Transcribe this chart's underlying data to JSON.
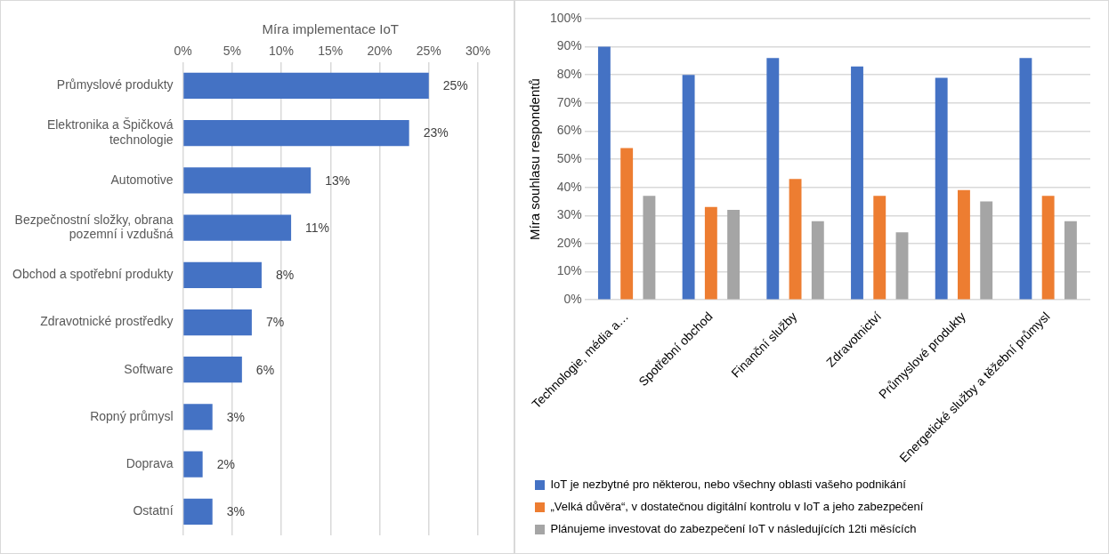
{
  "chart_data": [
    {
      "type": "bar",
      "orientation": "horizontal",
      "xlabel": "Míra implementace IoT",
      "categories": [
        "Průmyslové produkty",
        "Elektronika a Špičková technologie",
        "Automotive",
        "Bezpečnostní složky, obrana pozemní i vzdušná",
        "Obchod a spotřební produkty",
        "Zdravotnické prostředky",
        "Software",
        "Ropný průmysl",
        "Doprava",
        "Ostatní"
      ],
      "series": [
        {
          "color": "#4472c4",
          "values": [
            25,
            23,
            13,
            11,
            8,
            7,
            6,
            3,
            2,
            3
          ],
          "value_labels": [
            "25%",
            "23%",
            "13%",
            "11%",
            "8%",
            "7%",
            "6%",
            "3%",
            "2%",
            "3%"
          ]
        }
      ],
      "xlim": [
        0,
        30
      ],
      "xticks": [
        {
          "value": 0,
          "label": "0%"
        },
        {
          "value": 5,
          "label": "5%"
        },
        {
          "value": 10,
          "label": "10%"
        },
        {
          "value": 15,
          "label": "15%"
        },
        {
          "value": 20,
          "label": "20%"
        },
        {
          "value": 25,
          "label": "25%"
        },
        {
          "value": 30,
          "label": "30%"
        }
      ],
      "grid": "x",
      "legend": false
    },
    {
      "type": "bar",
      "ylabel": "Míra souhlasu respondentů",
      "categories": [
        "Technologie, média a…",
        "Spotřební obchod",
        "Finanční služby",
        "Zdravotnictví",
        "Průmyslové produkty",
        "Energetické služby a těžební průmysl"
      ],
      "series": [
        {
          "name": "IoT je nezbytné pro některou, nebo všechny oblasti vašeho podnikání",
          "color": "#4472c4",
          "values": [
            90,
            80,
            86,
            83,
            79,
            86
          ]
        },
        {
          "name": "„Velká důvěra“, v dostatečnou digitální kontrolu v IoT a jeho zabezpečení",
          "color": "#ed7d31",
          "values": [
            54,
            33,
            43,
            37,
            39,
            37
          ]
        },
        {
          "name": "Plánujeme investovat do zabezpečení IoT v následujících 12ti měsících",
          "color": "#a5a5a5",
          "values": [
            37,
            32,
            28,
            24,
            35,
            28
          ]
        }
      ],
      "ylim": [
        0,
        100
      ],
      "yticks": [
        {
          "value": 0,
          "label": "0%"
        },
        {
          "value": 10,
          "label": "10%"
        },
        {
          "value": 20,
          "label": "20%"
        },
        {
          "value": 30,
          "label": "30%"
        },
        {
          "value": 40,
          "label": "40%"
        },
        {
          "value": 50,
          "label": "50%"
        },
        {
          "value": 60,
          "label": "60%"
        },
        {
          "value": 70,
          "label": "70%"
        },
        {
          "value": 80,
          "label": "80%"
        },
        {
          "value": 90,
          "label": "90%"
        },
        {
          "value": 100,
          "label": "100%"
        }
      ],
      "grid": "y",
      "legend": "bottom"
    }
  ]
}
